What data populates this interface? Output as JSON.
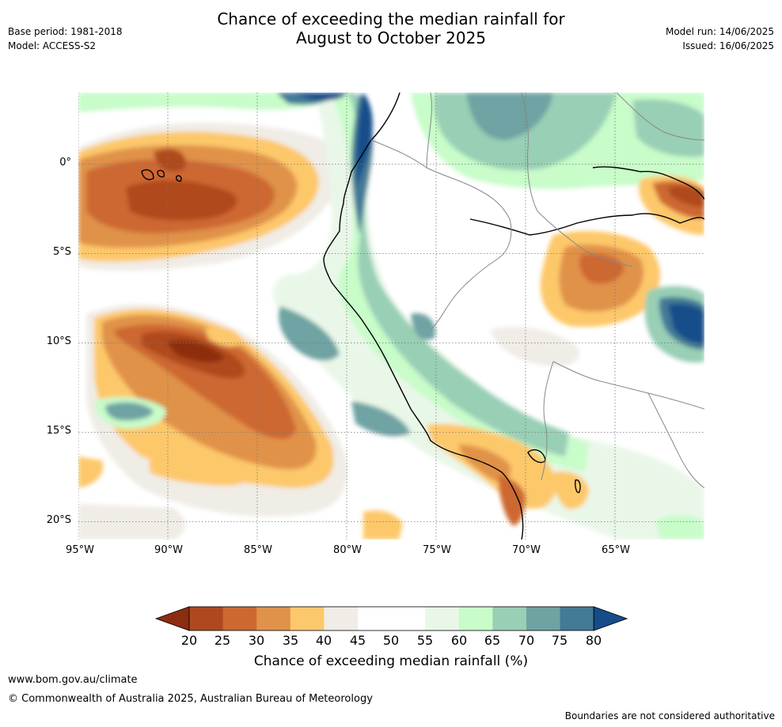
{
  "title": {
    "line1": "Chance of exceeding the median rainfall for",
    "line2": "August to October 2025"
  },
  "meta_left": {
    "base_period": "Base period: 1981-2018",
    "model": "Model: ACCESS-S2"
  },
  "meta_right": {
    "model_run": "Model run: 14/06/2025",
    "issued": "Issued: 16/06/2025"
  },
  "map": {
    "lon_range": [
      -95,
      -60
    ],
    "lat_range": [
      -21,
      4
    ],
    "lat_labels": [
      "0°",
      "5°S",
      "10°S",
      "15°S",
      "20°S"
    ],
    "lat_values": [
      0,
      -5,
      -10,
      -15,
      -20
    ],
    "lon_labels": [
      "95°W",
      "90°W",
      "85°W",
      "80°W",
      "75°W",
      "70°W",
      "65°W"
    ],
    "lon_values": [
      -95,
      -90,
      -85,
      -80,
      -75,
      -70,
      -65
    ],
    "gridlines": true
  },
  "colorbar": {
    "ticks": [
      "20",
      "25",
      "30",
      "35",
      "40",
      "45",
      "50",
      "55",
      "60",
      "65",
      "70",
      "75",
      "80"
    ],
    "colors": [
      "#8c2d0f",
      "#b0481f",
      "#cd6831",
      "#e0924a",
      "#fdc86b",
      "#f0ece6",
      "#ffffff",
      "#ffffff",
      "#e9f7e8",
      "#c8fcc9",
      "#98cfb5",
      "#6fa3a3",
      "#437a96",
      "#154d8a"
    ],
    "label": "Chance of exceeding median rainfall (%)"
  },
  "footer": {
    "website": "www.bom.gov.au/climate",
    "copyright": "© Commonwealth of Australia 2025, Australian Bureau of Meteorology",
    "disclaimer": "Boundaries are not considered authoritative"
  }
}
